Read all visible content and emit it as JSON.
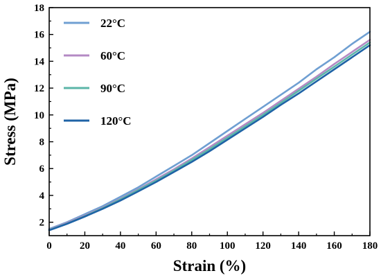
{
  "chart_data": {
    "type": "line",
    "xlabel": "Strain (%)",
    "ylabel": "Stress (MPa)",
    "xlim": [
      0,
      180
    ],
    "ylim": [
      1,
      18
    ],
    "xticks": [
      0,
      20,
      40,
      60,
      80,
      100,
      120,
      140,
      160,
      180
    ],
    "yticks": [
      2,
      4,
      6,
      8,
      10,
      12,
      14,
      16,
      18
    ],
    "grid": false,
    "legend_position": "top-left",
    "x": [
      0,
      10,
      20,
      30,
      40,
      50,
      60,
      70,
      80,
      90,
      100,
      110,
      120,
      130,
      140,
      150,
      160,
      170,
      180
    ],
    "series": [
      {
        "name": "22°C",
        "color": "#6f9fd2",
        "values": [
          1.5,
          2.0,
          2.6,
          3.2,
          3.9,
          4.6,
          5.4,
          6.2,
          7.0,
          7.9,
          8.8,
          9.7,
          10.6,
          11.5,
          12.4,
          13.4,
          14.3,
          15.3,
          16.2
        ]
      },
      {
        "name": "60°C",
        "color": "#b48ac4",
        "values": [
          1.45,
          1.95,
          2.5,
          3.1,
          3.75,
          4.45,
          5.2,
          5.95,
          6.75,
          7.6,
          8.45,
          9.3,
          10.15,
          11.05,
          11.95,
          12.85,
          13.8,
          14.7,
          15.6
        ]
      },
      {
        "name": "90°C",
        "color": "#5bb5a8",
        "values": [
          1.42,
          1.9,
          2.45,
          3.05,
          3.7,
          4.4,
          5.1,
          5.85,
          6.65,
          7.45,
          8.3,
          9.15,
          10.0,
          10.9,
          11.8,
          12.7,
          13.6,
          14.5,
          15.4
        ]
      },
      {
        "name": "120°C",
        "color": "#1f63a6",
        "values": [
          1.4,
          1.88,
          2.42,
          3.0,
          3.62,
          4.3,
          5.0,
          5.75,
          6.5,
          7.3,
          8.15,
          9.0,
          9.85,
          10.75,
          11.6,
          12.5,
          13.4,
          14.3,
          15.2
        ]
      }
    ]
  }
}
